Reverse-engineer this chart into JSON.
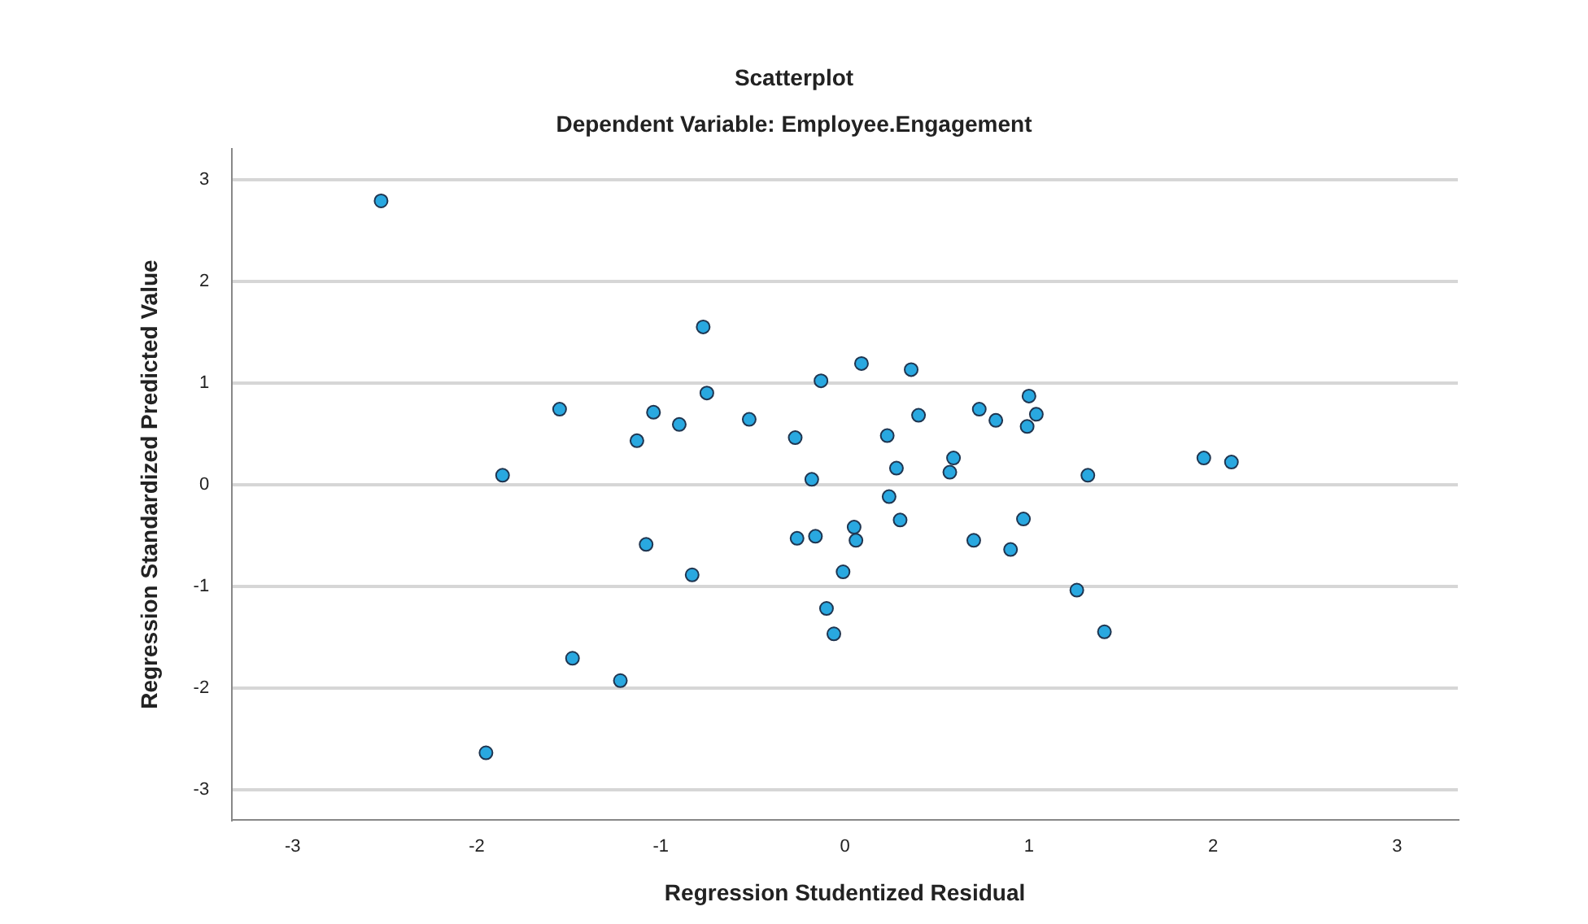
{
  "chart_data": {
    "type": "scatter",
    "title": "Scatterplot",
    "subtitle": "Dependent Variable: Employee.Engagement",
    "xlabel": "Regression Studentized Residual",
    "ylabel": "Regression Standardized Predicted Value",
    "xlim": [
      -3.33,
      3.33
    ],
    "ylim": [
      -3.3,
      3.3
    ],
    "xticks": [
      -3,
      -2,
      -1,
      0,
      1,
      2,
      3
    ],
    "yticks": [
      -3,
      -2,
      -1,
      0,
      1,
      2,
      3
    ],
    "grid": "y",
    "marker": "circle",
    "legend": false,
    "series": [
      {
        "color": "#29a8e0",
        "x": [
          -2.52,
          -0.77,
          0.09,
          -0.13,
          -0.75,
          -1.55,
          -1.04,
          -0.9,
          -0.52,
          -1.13,
          -0.27,
          -1.86,
          -0.18,
          -1.08,
          -0.26,
          -0.16,
          0.05,
          0.06,
          -0.83,
          -0.01,
          -0.1,
          -0.06,
          -1.48,
          -1.22,
          -1.95,
          0.36,
          0.4,
          0.23,
          0.28,
          0.24,
          0.3,
          0.59,
          0.57,
          0.73,
          0.82,
          1.0,
          1.04,
          0.99,
          0.7,
          0.9,
          0.97,
          1.32,
          1.26,
          1.41,
          1.95,
          2.1
        ],
        "values": [
          2.79,
          1.55,
          1.19,
          1.02,
          0.9,
          0.74,
          0.71,
          0.59,
          0.64,
          0.43,
          0.46,
          0.09,
          0.05,
          -0.59,
          -0.53,
          -0.51,
          -0.42,
          -0.55,
          -0.89,
          -0.86,
          -1.22,
          -1.47,
          -1.71,
          -1.93,
          -2.64,
          1.13,
          0.68,
          0.48,
          0.16,
          -0.12,
          -0.35,
          0.26,
          0.12,
          0.74,
          0.63,
          0.87,
          0.69,
          0.57,
          -0.55,
          -0.64,
          -0.34,
          0.09,
          -1.04,
          -1.45,
          0.26,
          0.22
        ]
      }
    ]
  }
}
